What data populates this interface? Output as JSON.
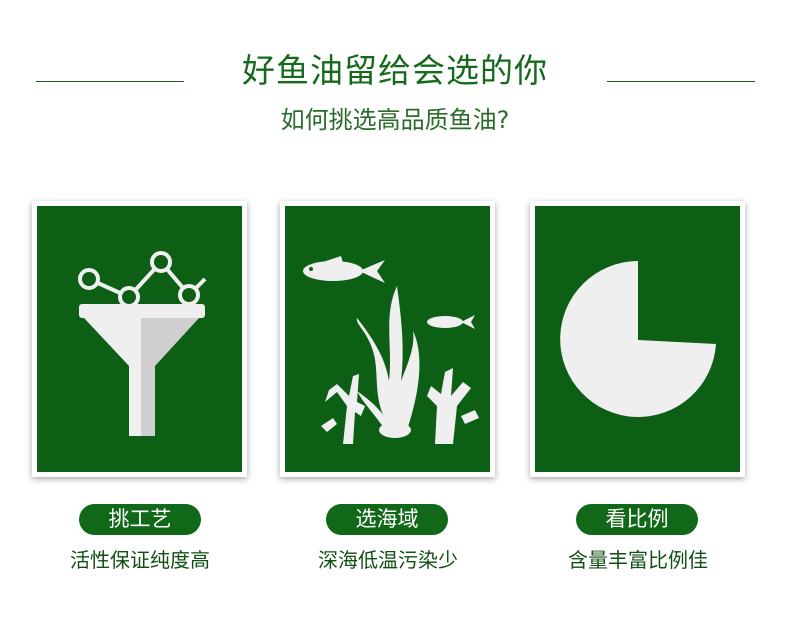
{
  "header": {
    "title": "好鱼油留给会选的你",
    "subtitle": "如何挑选高品质鱼油?"
  },
  "features": [
    {
      "icon": "funnel-chart-icon",
      "label": "挑工艺",
      "caption": "活性保证纯度高"
    },
    {
      "icon": "fish-seaweed-icon",
      "label": "选海域",
      "caption": "深海低温污染少"
    },
    {
      "icon": "pie-chart-icon",
      "label": "看比例",
      "caption": "含量丰富比例佳"
    }
  ],
  "colors": {
    "brand_green": "#0e5f16",
    "pill_green": "#116818",
    "title_green": "#166a1b",
    "icon_white": "#efefef"
  }
}
